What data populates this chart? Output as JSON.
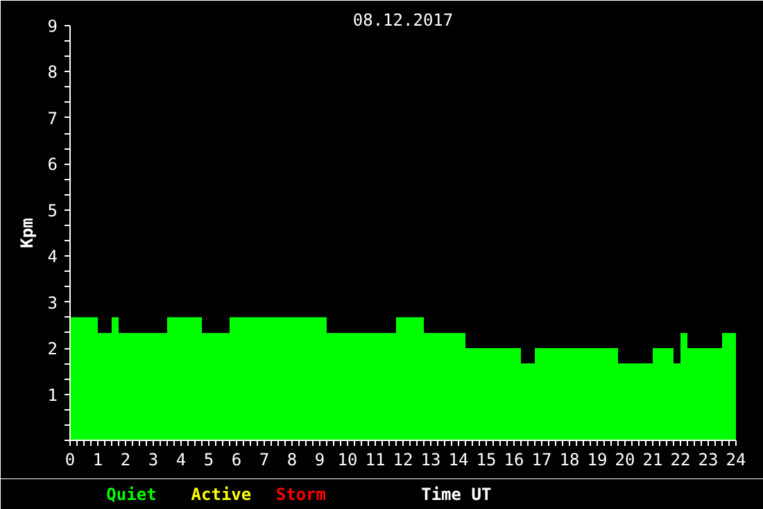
{
  "chart_data": {
    "type": "area",
    "title": "08.12.2017",
    "xlabel": "Time UT",
    "ylabel": "Kpm",
    "x": [
      0,
      1,
      1,
      1.5,
      1.5,
      1.75,
      1.75,
      3.5,
      3.5,
      4.75,
      4.75,
      5.75,
      5.75,
      9.25,
      9.25,
      11.75,
      11.75,
      12.75,
      12.75,
      14.25,
      14.25,
      16.25,
      16.25,
      16.75,
      16.75,
      19.75,
      19.75,
      21,
      21,
      21.75,
      21.75,
      22,
      22,
      22.25,
      22.25,
      23.5,
      23.5,
      24
    ],
    "series": [
      {
        "name": "Quiet",
        "color": "#00ff00",
        "values": [
          2.67,
          2.67,
          2.33,
          2.33,
          2.67,
          2.67,
          2.33,
          2.33,
          2.67,
          2.67,
          2.33,
          2.33,
          2.67,
          2.67,
          2.33,
          2.33,
          2.67,
          2.67,
          2.33,
          2.33,
          2.0,
          2.0,
          1.67,
          1.67,
          2.0,
          2.0,
          1.67,
          1.67,
          2.0,
          2.0,
          1.67,
          1.67,
          2.33,
          2.33,
          2.0,
          2.0,
          2.33,
          2.33
        ]
      },
      {
        "name": "Active",
        "color": "#ffff00",
        "values": [
          null,
          null,
          null,
          null,
          null,
          null,
          null,
          null,
          null,
          null,
          null,
          null,
          null,
          null,
          null,
          null,
          null,
          null,
          null,
          null,
          null,
          null,
          null,
          null,
          null,
          null,
          null,
          null,
          null,
          null,
          null,
          null,
          null,
          null,
          null,
          null,
          null,
          null
        ]
      },
      {
        "name": "Storm",
        "color": "#ff0000",
        "values": [
          null,
          null,
          null,
          null,
          null,
          null,
          null,
          null,
          null,
          null,
          null,
          null,
          null,
          null,
          null,
          null,
          null,
          null,
          null,
          null,
          null,
          null,
          null,
          null,
          null,
          null,
          null,
          null,
          null,
          null,
          null,
          null,
          null,
          null,
          null,
          null,
          null,
          null
        ]
      }
    ],
    "xlim": [
      0,
      24
    ],
    "ylim": [
      0,
      9
    ],
    "xticks": [
      0,
      {
        "value": 0.25,
        "label": null
      },
      {
        "value": 0.5,
        "label": null
      },
      {
        "value": 0.75,
        "label": null
      },
      1,
      {
        "value": 1.25,
        "label": null
      },
      {
        "value": 1.5,
        "label": null
      },
      {
        "value": 1.75,
        "label": null
      },
      2,
      {
        "value": 2.25,
        "label": null
      },
      {
        "value": 2.5,
        "label": null
      },
      {
        "value": 2.75,
        "label": null
      },
      3,
      {
        "value": 3.25,
        "label": null
      },
      {
        "value": 3.5,
        "label": null
      },
      {
        "value": 3.75,
        "label": null
      },
      4,
      {
        "value": 4.25,
        "label": null
      },
      {
        "value": 4.5,
        "label": null
      },
      {
        "value": 4.75,
        "label": null
      },
      5,
      {
        "value": 5.25,
        "label": null
      },
      {
        "value": 5.5,
        "label": null
      },
      {
        "value": 5.75,
        "label": null
      },
      6,
      {
        "value": 6.25,
        "label": null
      },
      {
        "value": 6.5,
        "label": null
      },
      {
        "value": 6.75,
        "label": null
      },
      7,
      {
        "value": 7.25,
        "label": null
      },
      {
        "value": 7.5,
        "label": null
      },
      {
        "value": 7.75,
        "label": null
      },
      8,
      {
        "value": 8.25,
        "label": null
      },
      {
        "value": 8.5,
        "label": null
      },
      {
        "value": 8.75,
        "label": null
      },
      9,
      {
        "value": 9.25,
        "label": null
      },
      {
        "value": 9.5,
        "label": null
      },
      {
        "value": 9.75,
        "label": null
      },
      10,
      {
        "value": 10.25,
        "label": null
      },
      {
        "value": 10.5,
        "label": null
      },
      {
        "value": 10.75,
        "label": null
      },
      11,
      {
        "value": 11.25,
        "label": null
      },
      {
        "value": 11.5,
        "label": null
      },
      {
        "value": 11.75,
        "label": null
      },
      12,
      {
        "value": 12.25,
        "label": null
      },
      {
        "value": 12.5,
        "label": null
      },
      {
        "value": 12.75,
        "label": null
      },
      13,
      {
        "value": 13.25,
        "label": null
      },
      {
        "value": 13.5,
        "label": null
      },
      {
        "value": 13.75,
        "label": null
      },
      14,
      {
        "value": 14.25,
        "label": null
      },
      {
        "value": 14.5,
        "label": null
      },
      {
        "value": 14.75,
        "label": null
      },
      15,
      {
        "value": 15.25,
        "label": null
      },
      {
        "value": 15.5,
        "label": null
      },
      {
        "value": 15.75,
        "label": null
      },
      16,
      {
        "value": 16.25,
        "label": null
      },
      {
        "value": 16.5,
        "label": null
      },
      {
        "value": 16.75,
        "label": null
      },
      17,
      {
        "value": 17.25,
        "label": null
      },
      {
        "value": 17.5,
        "label": null
      },
      {
        "value": 17.75,
        "label": null
      },
      18,
      {
        "value": 18.25,
        "label": null
      },
      {
        "value": 18.5,
        "label": null
      },
      {
        "value": 18.75,
        "label": null
      },
      19,
      {
        "value": 19.25,
        "label": null
      },
      {
        "value": 19.5,
        "label": null
      },
      {
        "value": 19.75,
        "label": null
      },
      20,
      {
        "value": 20.25,
        "label": null
      },
      {
        "value": 20.5,
        "label": null
      },
      {
        "value": 20.75,
        "label": null
      },
      21,
      {
        "value": 21.25,
        "label": null
      },
      {
        "value": 21.5,
        "label": null
      },
      {
        "value": 21.75,
        "label": null
      },
      22,
      {
        "value": 22.25,
        "label": null
      },
      {
        "value": 22.5,
        "label": null
      },
      {
        "value": 22.75,
        "label": null
      },
      23,
      {
        "value": 23.25,
        "label": null
      },
      {
        "value": 23.5,
        "label": null
      },
      {
        "value": 23.75,
        "label": null
      },
      24
    ],
    "yticks": [
      {
        "value": 0,
        "label": null
      },
      {
        "value": 0.333,
        "label": null
      },
      {
        "value": 0.667,
        "label": null
      },
      1,
      {
        "value": 1.333,
        "label": null
      },
      {
        "value": 1.667,
        "label": null
      },
      2,
      {
        "value": 2.333,
        "label": null
      },
      {
        "value": 2.667,
        "label": null
      },
      3,
      {
        "value": 3.333,
        "label": null
      },
      {
        "value": 3.667,
        "label": null
      },
      4,
      {
        "value": 4.333,
        "label": null
      },
      {
        "value": 4.667,
        "label": null
      },
      5,
      {
        "value": 5.333,
        "label": null
      },
      {
        "value": 5.667,
        "label": null
      },
      6,
      {
        "value": 6.333,
        "label": null
      },
      {
        "value": 6.667,
        "label": null
      },
      7,
      {
        "value": 7.333,
        "label": null
      },
      {
        "value": 7.667,
        "label": null
      },
      8,
      {
        "value": 8.333,
        "label": null
      },
      {
        "value": 8.667,
        "label": null
      },
      9
    ],
    "grid": false
  }
}
